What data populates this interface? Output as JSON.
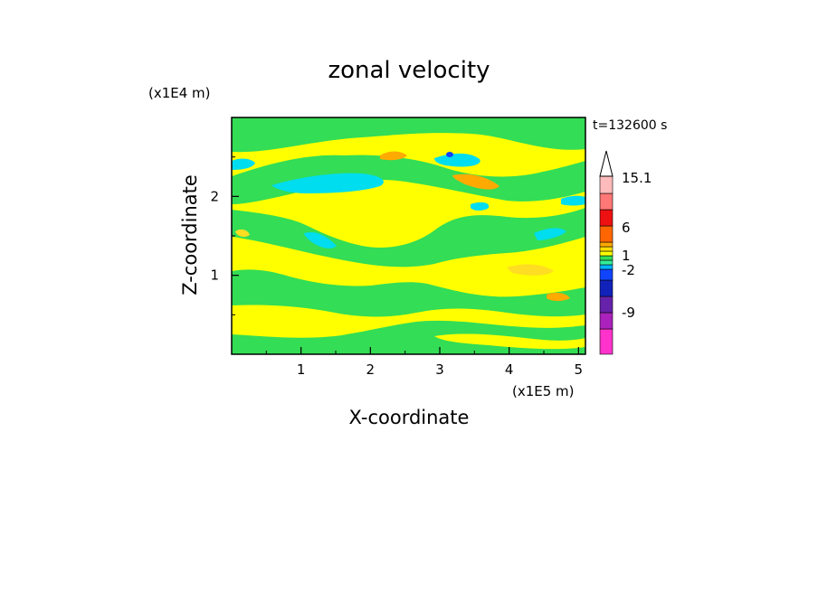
{
  "chart_data": {
    "type": "heatmap",
    "title": "zonal velocity",
    "xlabel": "X-coordinate",
    "ylabel": "Z-coordinate",
    "x_unit": "(x1E5 m)",
    "y_unit": "(x1E4 m)",
    "time_label": "t=132600 s",
    "x_ticks": [
      "1",
      "2",
      "3",
      "4",
      "5"
    ],
    "y_ticks": [
      "1",
      "2"
    ],
    "x_tick_values": [
      1,
      2,
      3,
      4,
      5
    ],
    "y_tick_values": [
      1,
      2
    ],
    "xlim": [
      0,
      5.1
    ],
    "ylim": [
      0,
      3
    ],
    "colorbar": {
      "labels": [
        "15.1",
        "6",
        "1",
        "-2",
        "-9"
      ],
      "levels": [
        {
          "color": "#ff33cc"
        },
        {
          "color": "#aa22bb"
        },
        {
          "color": "#6622aa"
        },
        {
          "color": "#1122bb"
        },
        {
          "color": "#1144ff"
        },
        {
          "color": "#00b4ff"
        },
        {
          "color": "#33ee99"
        },
        {
          "color": "#33dd55"
        },
        {
          "color": "#ffff00"
        },
        {
          "color": "#ffdd00"
        },
        {
          "color": "#ffaa00"
        },
        {
          "color": "#ff6600"
        },
        {
          "color": "#ee1111"
        },
        {
          "color": "#ff7777"
        },
        {
          "color": "#ffbbbb"
        }
      ]
    },
    "field_colors": {
      "background": "#ffff00",
      "positive_light": "#ffdd22",
      "positive_orange": "#ffaa00",
      "negative_green": "#33dd55",
      "negative_cyan": "#00ddee",
      "negative_blue": "#1144ff"
    }
  }
}
